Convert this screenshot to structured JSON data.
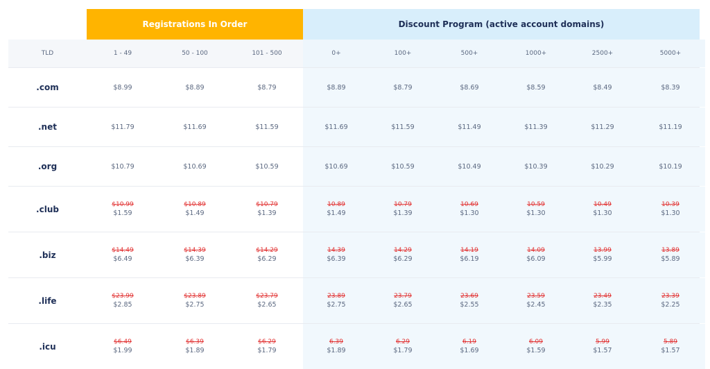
{
  "header": {
    "order_title": "Registrations In Order",
    "discount_title": "Discount Program (active account domains)"
  },
  "columns": [
    "TLD",
    "1 - 49",
    "50 - 100",
    "101 - 500",
    "0+",
    "100+",
    "500+",
    "1000+",
    "2500+",
    "5000+"
  ],
  "colors": {
    "order_header_bg": "#ffb400",
    "discount_header_bg": "#d8eefb",
    "strike_price": "#e23636",
    "tld_text": "#1e2f57"
  },
  "rows": [
    {
      "tld": ".com",
      "prices": [
        "$8.99",
        "$8.89",
        "$8.79",
        "$8.89",
        "$8.79",
        "$8.69",
        "$8.59",
        "$8.49",
        "$8.39"
      ]
    },
    {
      "tld": ".net",
      "prices": [
        "$11.79",
        "$11.69",
        "$11.59",
        "$11.69",
        "$11.59",
        "$11.49",
        "$11.39",
        "$11.29",
        "$11.19"
      ]
    },
    {
      "tld": ".org",
      "prices": [
        "$10.79",
        "$10.69",
        "$10.59",
        "$10.69",
        "$10.59",
        "$10.49",
        "$10.39",
        "$10.29",
        "$10.19"
      ]
    },
    {
      "tld": ".club",
      "old": [
        "$10.99",
        "$10.89",
        "$10.79",
        "10.89",
        "10.79",
        "10.69",
        "10.59",
        "10.49",
        "10.39"
      ],
      "prices": [
        "$1.59",
        "$1.49",
        "$1.39",
        "$1.49",
        "$1.39",
        "$1.30",
        "$1.30",
        "$1.30",
        "$1.30"
      ]
    },
    {
      "tld": ".biz",
      "old": [
        "$14.49",
        "$14.39",
        "$14.29",
        "14.39",
        "14.29",
        "14.19",
        "14.09",
        "13.99",
        "13.89"
      ],
      "prices": [
        "$6.49",
        "$6.39",
        "$6.29",
        "$6.39",
        "$6.29",
        "$6.19",
        "$6.09",
        "$5.99",
        "$5.89"
      ]
    },
    {
      "tld": ".life",
      "old": [
        "$23.99",
        "$23.89",
        "$23.79",
        "23.89",
        "23.79",
        "23.69",
        "23.59",
        "23.49",
        "23.39"
      ],
      "prices": [
        "$2.85",
        "$2.75",
        "$2.65",
        "$2.75",
        "$2.65",
        "$2.55",
        "$2.45",
        "$2.35",
        "$2.25"
      ]
    },
    {
      "tld": ".icu",
      "old": [
        "$6.49",
        "$6.39",
        "$6.29",
        "6.39",
        "6.29",
        "6.19",
        "6.09",
        "5.99",
        "5.89"
      ],
      "prices": [
        "$1.99",
        "$1.89",
        "$1.79",
        "$1.89",
        "$1.79",
        "$1.69",
        "$1.59",
        "$1.57",
        "$1.57"
      ]
    }
  ]
}
